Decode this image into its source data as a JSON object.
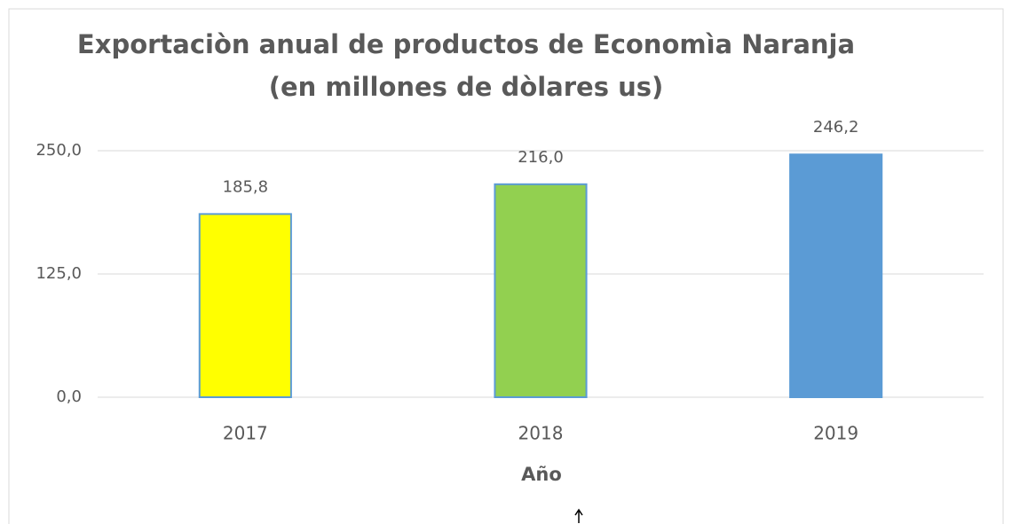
{
  "chart_data": {
    "type": "bar",
    "title": "Exportaciòn anual de productos de Economìa Naranja",
    "subtitle": "(en millones de dòlares us)",
    "x_label": "Año",
    "categories": [
      "2017",
      "2018",
      "2019"
    ],
    "values": [
      185.8,
      216.0,
      246.2
    ],
    "value_labels": [
      "185,8",
      "216,0",
      "246,2"
    ],
    "colors": [
      "#ffff00",
      "#92d050",
      "#5b9bd5"
    ],
    "ylim": [
      0,
      250
    ],
    "yticks": [
      {
        "value": 0,
        "label": "0,0"
      },
      {
        "value": 125,
        "label": "125,0"
      },
      {
        "value": 250,
        "label": "250,0"
      }
    ],
    "grid": true
  }
}
